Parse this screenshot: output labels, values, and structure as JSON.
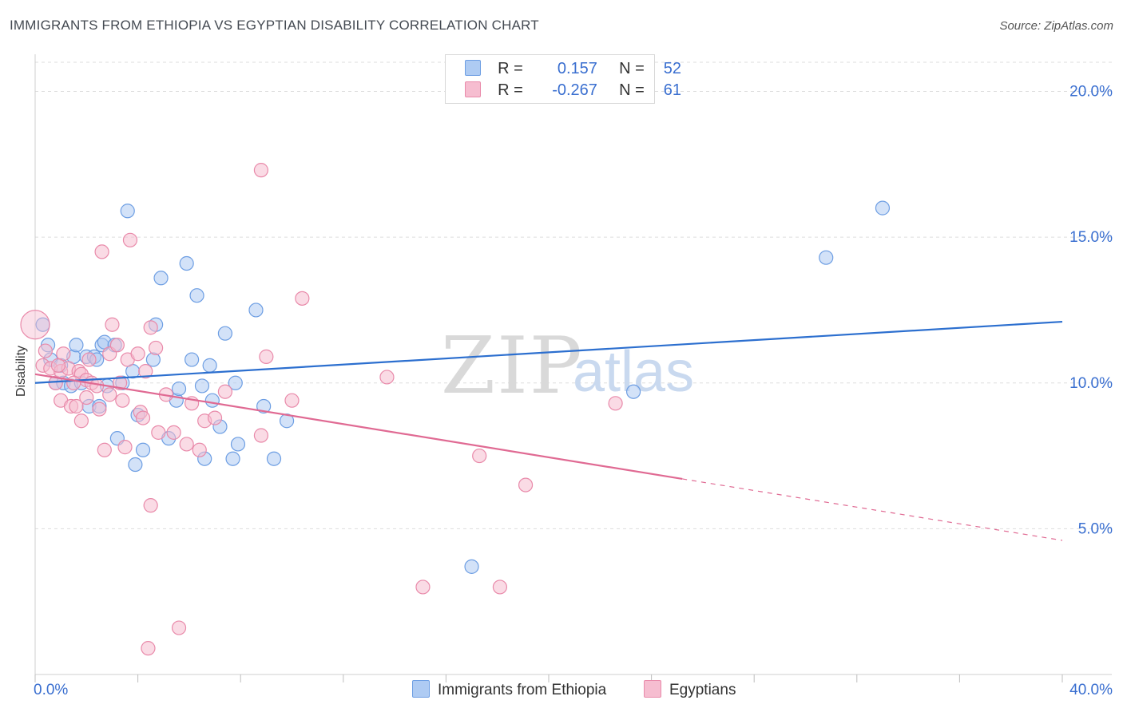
{
  "header": {
    "title": "IMMIGRANTS FROM ETHIOPIA VS EGYPTIAN DISABILITY CORRELATION CHART",
    "source": "Source: ZipAtlas.com"
  },
  "legend_top": {
    "rows": [
      {
        "r_label": "R =",
        "r_value": "0.157",
        "n_label": "N =",
        "n_value": "52"
      },
      {
        "r_label": "R =",
        "r_value": "-0.267",
        "n_label": "N =",
        "n_value": "61"
      }
    ]
  },
  "watermark": {
    "zip": "ZIP",
    "atlas": "atlas"
  },
  "colors": {
    "blue_fill": "#aecbf3",
    "blue_stroke": "#6d9ee3",
    "blue_line": "#2c6fcf",
    "pink_fill": "#f6bdd0",
    "pink_stroke": "#e98aaa",
    "pink_line": "#e06a93",
    "tick_text": "#3a6fd0",
    "grid": "#dddddd"
  },
  "chart_data": {
    "type": "scatter",
    "title": "IMMIGRANTS FROM ETHIOPIA VS EGYPTIAN DISABILITY CORRELATION CHART",
    "xlabel": "",
    "ylabel": "Disability",
    "xlim": [
      0,
      40
    ],
    "ylim": [
      0,
      21
    ],
    "x_tick_labels": {
      "left": "0.0%",
      "right": "40.0%"
    },
    "y_ticks": [
      {
        "value": 5,
        "label": "5.0%"
      },
      {
        "value": 10,
        "label": "10.0%"
      },
      {
        "value": 15,
        "label": "15.0%"
      },
      {
        "value": 20,
        "label": "20.0%"
      }
    ],
    "series": [
      {
        "name": "Immigrants from Ethiopia",
        "color": "#6d9ee3",
        "trend": {
          "x0": 0,
          "y0": 10.0,
          "x1": 40,
          "y1": 12.1,
          "dashed_from": null
        },
        "points": [
          [
            0.3,
            12.0
          ],
          [
            0.5,
            11.3
          ],
          [
            0.6,
            10.8
          ],
          [
            0.8,
            10.0
          ],
          [
            1.0,
            10.6
          ],
          [
            1.1,
            10.0
          ],
          [
            1.4,
            9.9
          ],
          [
            1.5,
            10.9
          ],
          [
            1.6,
            11.3
          ],
          [
            1.8,
            10.0
          ],
          [
            2.0,
            10.9
          ],
          [
            2.1,
            9.2
          ],
          [
            2.3,
            10.9
          ],
          [
            2.5,
            9.2
          ],
          [
            2.4,
            10.8
          ],
          [
            2.6,
            11.3
          ],
          [
            2.7,
            11.4
          ],
          [
            2.8,
            9.9
          ],
          [
            3.1,
            11.3
          ],
          [
            3.2,
            8.1
          ],
          [
            3.4,
            10.0
          ],
          [
            3.6,
            15.9
          ],
          [
            3.8,
            10.4
          ],
          [
            3.9,
            7.2
          ],
          [
            4.0,
            8.9
          ],
          [
            4.2,
            7.7
          ],
          [
            4.6,
            10.8
          ],
          [
            4.7,
            12.0
          ],
          [
            4.9,
            13.6
          ],
          [
            5.2,
            8.1
          ],
          [
            5.5,
            9.4
          ],
          [
            5.6,
            9.8
          ],
          [
            5.9,
            14.1
          ],
          [
            6.1,
            10.8
          ],
          [
            6.3,
            13.0
          ],
          [
            6.5,
            9.9
          ],
          [
            6.6,
            7.4
          ],
          [
            6.8,
            10.6
          ],
          [
            6.9,
            9.4
          ],
          [
            7.2,
            8.5
          ],
          [
            7.4,
            11.7
          ],
          [
            7.7,
            7.4
          ],
          [
            7.8,
            10.0
          ],
          [
            7.9,
            7.9
          ],
          [
            8.6,
            12.5
          ],
          [
            8.9,
            9.2
          ],
          [
            9.3,
            7.4
          ],
          [
            9.8,
            8.7
          ],
          [
            17.0,
            3.7
          ],
          [
            23.3,
            9.7
          ],
          [
            30.8,
            14.3
          ],
          [
            33.0,
            16.0
          ]
        ]
      },
      {
        "name": "Egyptians",
        "color": "#e98aaa",
        "trend": {
          "x0": 0,
          "y0": 10.3,
          "x1": 40,
          "y1": 4.6,
          "dashed_from": 25.2
        },
        "points": [
          [
            0.3,
            10.6
          ],
          [
            0.4,
            11.1
          ],
          [
            0.6,
            10.5
          ],
          [
            0.8,
            10.0
          ],
          [
            1.0,
            10.4
          ],
          [
            1.0,
            9.4
          ],
          [
            1.1,
            11.0
          ],
          [
            1.3,
            10.5
          ],
          [
            1.4,
            9.2
          ],
          [
            1.6,
            9.2
          ],
          [
            1.7,
            10.4
          ],
          [
            1.8,
            10.3
          ],
          [
            1.8,
            8.7
          ],
          [
            2.0,
            9.5
          ],
          [
            2.0,
            10.1
          ],
          [
            2.1,
            10.8
          ],
          [
            2.2,
            10.0
          ],
          [
            2.4,
            9.9
          ],
          [
            2.5,
            9.1
          ],
          [
            2.6,
            14.5
          ],
          [
            2.7,
            7.7
          ],
          [
            2.9,
            11.0
          ],
          [
            2.9,
            9.6
          ],
          [
            3.0,
            12.0
          ],
          [
            3.2,
            11.3
          ],
          [
            3.4,
            9.4
          ],
          [
            3.5,
            7.8
          ],
          [
            3.6,
            10.8
          ],
          [
            3.7,
            14.9
          ],
          [
            4.0,
            11.0
          ],
          [
            4.1,
            9.0
          ],
          [
            4.2,
            8.8
          ],
          [
            4.3,
            10.4
          ],
          [
            4.5,
            11.9
          ],
          [
            4.5,
            5.8
          ],
          [
            4.7,
            11.2
          ],
          [
            4.8,
            8.3
          ],
          [
            5.1,
            9.6
          ],
          [
            5.4,
            8.3
          ],
          [
            5.6,
            1.6
          ],
          [
            5.9,
            7.9
          ],
          [
            6.1,
            9.3
          ],
          [
            6.4,
            7.7
          ],
          [
            6.6,
            8.7
          ],
          [
            7.0,
            8.8
          ],
          [
            7.4,
            9.7
          ],
          [
            8.8,
            17.3
          ],
          [
            8.8,
            8.2
          ],
          [
            9.0,
            10.9
          ],
          [
            10.0,
            9.4
          ],
          [
            10.4,
            12.9
          ],
          [
            13.7,
            10.2
          ],
          [
            15.1,
            3.0
          ],
          [
            17.3,
            7.5
          ],
          [
            18.1,
            3.0
          ],
          [
            19.1,
            6.5
          ],
          [
            22.6,
            9.3
          ],
          [
            4.4,
            0.9
          ],
          [
            0.9,
            10.6
          ],
          [
            1.5,
            10.0
          ],
          [
            3.3,
            10.0
          ]
        ]
      }
    ]
  },
  "bottom_legend": {
    "items": [
      "Immigrants from Ethiopia",
      "Egyptians"
    ]
  }
}
